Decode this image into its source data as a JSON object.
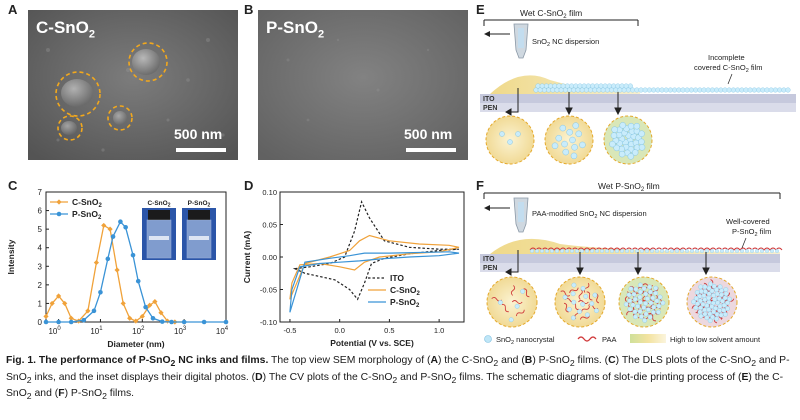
{
  "panels": {
    "A": {
      "letter": "A",
      "title_main": "C-SnO",
      "title_sub": "2",
      "scale_text": "500 nm"
    },
    "B": {
      "letter": "B",
      "title_main": "P-SnO",
      "title_sub": "2",
      "scale_text": "500 nm"
    },
    "C": {
      "letter": "C"
    },
    "D": {
      "letter": "D"
    },
    "E": {
      "letter": "E",
      "header": "Wet C-SnO",
      "header_sub": "2",
      "header_suffix": " film",
      "dispersion_label": "SnO",
      "dispersion_sub": "2",
      "dispersion_suffix": " NC dispersion",
      "film_label_1": "Incomplete",
      "film_label_2": "covered C-SnO",
      "film_label_2_sub": "2",
      "film_label_2_suffix": " film",
      "substrate_1": "ITO",
      "substrate_2": "PEN"
    },
    "F": {
      "letter": "F",
      "header": "Wet P-SnO",
      "header_sub": "2",
      "header_suffix": " film",
      "dispersion_label": "PAA-modified SnO",
      "dispersion_sub": "2",
      "dispersion_suffix": " NC dispersion",
      "film_label_1": "Well-covered",
      "film_label_2": "P-SnO",
      "film_label_2_sub": "2",
      "film_label_2_suffix": " film",
      "substrate_1": "ITO",
      "substrate_2": "PEN",
      "legend_nc": "SnO",
      "legend_nc_sub": "2",
      "legend_nc_suffix": " nanocrystal",
      "legend_paa": "PAA",
      "legend_gradient": "High to low solvent amount"
    }
  },
  "chart_data": [
    {
      "type": "line",
      "panel": "C",
      "xlabel": "Diameter (nm)",
      "ylabel": "Intensity",
      "xscale": "log",
      "xlim": [
        0.5,
        10000
      ],
      "ylim": [
        0,
        7
      ],
      "x_ticks": [
        "10",
        "10",
        "10",
        "10",
        "10"
      ],
      "x_tick_exponents": [
        "0",
        "1",
        "2",
        "3",
        "4"
      ],
      "y_ticks": [
        "0",
        "1",
        "2",
        "3",
        "4",
        "5",
        "6",
        "7"
      ],
      "legend_position": "top-left",
      "inset_labels": [
        "C-SnO2",
        "P-SnO2"
      ],
      "series": [
        {
          "name": "C-SnO2",
          "color": "#f0a23a",
          "x": [
            0.5,
            0.7,
            1.0,
            1.4,
            2.0,
            3,
            5,
            8,
            12,
            17,
            25,
            35,
            50,
            70,
            100,
            150,
            200,
            280,
            400,
            600,
            1000
          ],
          "y": [
            0.3,
            1.0,
            1.4,
            1.0,
            0.2,
            0.05,
            0.6,
            3.2,
            5.2,
            5.0,
            2.8,
            1.0,
            0.2,
            0.05,
            0.3,
            0.9,
            1.1,
            0.5,
            0.05,
            0,
            0
          ]
        },
        {
          "name": "P-SnO2",
          "color": "#3a93d6",
          "x": [
            0.5,
            1,
            2,
            4,
            7,
            10,
            15,
            20,
            30,
            40,
            60,
            80,
            120,
            180,
            300,
            500,
            1000,
            3000,
            10000
          ],
          "y": [
            0,
            0,
            0,
            0.1,
            0.6,
            1.6,
            3.4,
            4.6,
            5.4,
            5.1,
            3.6,
            2.2,
            0.8,
            0.2,
            0.02,
            0,
            0,
            0,
            0
          ]
        }
      ]
    },
    {
      "type": "line",
      "panel": "D",
      "xlabel": "Potential (V vs. SCE)",
      "ylabel": "Current (mA)",
      "xlim": [
        -0.6,
        1.25
      ],
      "ylim": [
        -0.1,
        0.1
      ],
      "x_ticks": [
        "-0.5",
        "0.0",
        "0.5",
        "1.0"
      ],
      "y_ticks": [
        "-0.10",
        "-0.05",
        "0.00",
        "0.05",
        "0.10"
      ],
      "legend_position": "bottom-right",
      "series": [
        {
          "name": "ITO",
          "color": "#222222",
          "dash": true,
          "x": [
            -0.45,
            -0.3,
            -0.1,
            0.05,
            0.15,
            0.22,
            0.3,
            0.45,
            0.7,
            1.0,
            1.2,
            1.0,
            0.7,
            0.45,
            0.32,
            0.25,
            0.18,
            0.1,
            -0.05,
            -0.2,
            -0.35,
            -0.45
          ],
          "y": [
            -0.018,
            -0.015,
            -0.01,
            0.0,
            0.04,
            0.085,
            0.06,
            0.025,
            0.015,
            0.012,
            0.012,
            0.01,
            0.005,
            -0.002,
            -0.01,
            -0.04,
            -0.065,
            -0.05,
            -0.035,
            -0.03,
            -0.025,
            -0.018
          ]
        },
        {
          "name": "C-SnO2",
          "color": "#f0a23a",
          "x": [
            -0.5,
            -0.35,
            -0.1,
            0.1,
            0.2,
            0.3,
            0.5,
            0.8,
            1.1,
            1.2,
            1.0,
            0.7,
            0.4,
            0.25,
            0.15,
            0.0,
            -0.2,
            -0.4,
            -0.48,
            -0.5
          ],
          "y": [
            -0.065,
            -0.01,
            0.0,
            0.01,
            0.025,
            0.033,
            0.025,
            0.02,
            0.018,
            0.015,
            0.008,
            0.005,
            0.0,
            -0.008,
            -0.02,
            -0.015,
            -0.01,
            -0.012,
            -0.04,
            -0.065
          ]
        },
        {
          "name": "P-SnO2",
          "color": "#3a93d6",
          "x": [
            -0.5,
            -0.35,
            -0.1,
            0.1,
            0.25,
            0.5,
            0.8,
            1.1,
            1.2,
            1.0,
            0.7,
            0.4,
            0.2,
            0.0,
            -0.2,
            -0.4,
            -0.48,
            -0.5
          ],
          "y": [
            -0.085,
            -0.008,
            -0.002,
            0.002,
            0.006,
            0.006,
            0.007,
            0.008,
            0.006,
            0.002,
            0.0,
            -0.003,
            -0.006,
            -0.008,
            -0.01,
            -0.015,
            -0.05,
            -0.085
          ]
        }
      ]
    }
  ],
  "caption": {
    "fig_label": "Fig. 1. The performance of P-SnO",
    "fig_label_sub": "2",
    "fig_label_end": " NC inks and films.",
    "text_1": " The top view SEM morphology of (",
    "A": "A",
    "text_2": ") the C-SnO",
    "sub_2": "2",
    "text_3": " and (",
    "B": "B",
    "text_4": ") P-SnO",
    "sub_4": "2",
    "text_5": " films. (",
    "C": "C",
    "text_6": ") The DLS plots of the C-SnO",
    "sub_6": "2",
    "text_7": " and P-SnO",
    "sub_7": "2",
    "text_8": " inks, and the inset displays their digital photos. (",
    "D": "D",
    "text_9": ") The CV plots of the C-SnO",
    "sub_9": "2",
    "text_10": " and P-SnO",
    "sub_10": "2",
    "text_11": " films. The schematic diagrams of slot-die printing process of (",
    "E": "E",
    "text_12": ") the C-SnO",
    "sub_12": "2",
    "text_13": " and (",
    "F": "F",
    "text_14": ") P-SnO",
    "sub_14": "2",
    "text_15": " films."
  }
}
